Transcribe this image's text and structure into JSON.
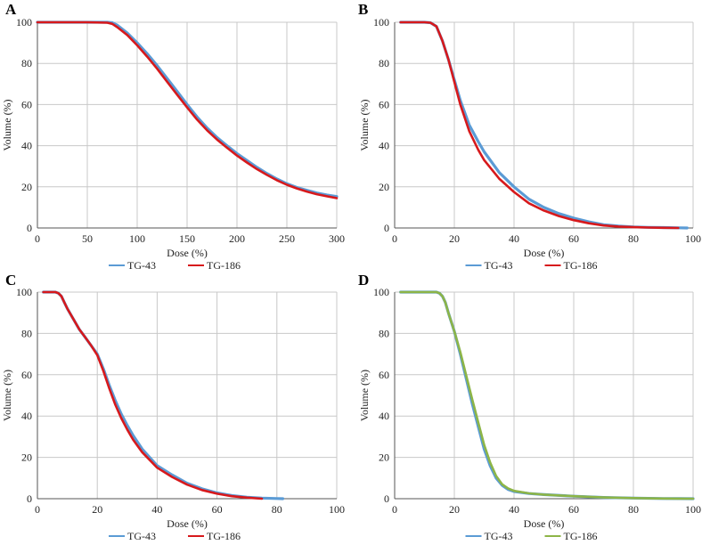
{
  "figure": {
    "panels": [
      {
        "letter": "A",
        "xlabel": "Dose (%)",
        "ylabel": "Volume (%)",
        "chart_data": {
          "type": "line",
          "xlim": [
            0,
            300
          ],
          "ylim": [
            0,
            100
          ],
          "xticks": [
            0,
            50,
            100,
            150,
            200,
            250,
            300
          ],
          "yticks": [
            0,
            20,
            40,
            60,
            80,
            100
          ],
          "series": [
            {
              "name": "TG-43",
              "color": "#5b9bd5",
              "x": [
                0,
                50,
                70,
                75,
                80,
                90,
                100,
                110,
                120,
                130,
                140,
                150,
                160,
                170,
                180,
                190,
                200,
                210,
                220,
                230,
                240,
                250,
                260,
                270,
                280,
                290,
                300
              ],
              "y": [
                100,
                100,
                100,
                99.8,
                98.6,
                94.8,
                90.0,
                84.7,
                78.9,
                72.7,
                66.4,
                60.0,
                54.0,
                48.6,
                44.0,
                40.0,
                36.2,
                32.8,
                29.5,
                26.5,
                23.8,
                21.5,
                19.7,
                18.3,
                17.0,
                16.0,
                15.3
              ]
            },
            {
              "name": "TG-186",
              "color": "#d7191c",
              "x": [
                0,
                50,
                70,
                75,
                80,
                90,
                100,
                110,
                120,
                130,
                140,
                150,
                160,
                170,
                180,
                190,
                200,
                210,
                220,
                230,
                240,
                250,
                260,
                270,
                280,
                290,
                300
              ],
              "y": [
                100,
                100,
                99.8,
                99.2,
                97.6,
                93.8,
                88.8,
                83.3,
                77.4,
                71.1,
                64.8,
                58.6,
                52.7,
                47.5,
                43.0,
                39.0,
                35.2,
                31.8,
                28.6,
                25.8,
                23.2,
                21.0,
                19.2,
                17.7,
                16.4,
                15.4,
                14.5
              ]
            }
          ]
        }
      },
      {
        "letter": "B",
        "xlabel": "Dose (%)",
        "ylabel": "Volume (%)",
        "chart_data": {
          "type": "line",
          "xlim": [
            0,
            100
          ],
          "ylim": [
            0,
            100
          ],
          "xticks": [
            0,
            20,
            40,
            60,
            80,
            100
          ],
          "yticks": [
            0,
            20,
            40,
            60,
            80,
            100
          ],
          "series": [
            {
              "name": "TG-43",
              "color": "#5b9bd5",
              "x": [
                2,
                10,
                12,
                14,
                16,
                18,
                20,
                22,
                25,
                28,
                30,
                35,
                40,
                45,
                50,
                55,
                60,
                65,
                70,
                75,
                80,
                85,
                90,
                95,
                98
              ],
              "y": [
                100,
                100,
                99.8,
                98,
                91,
                82,
                72,
                62,
                50,
                42,
                37,
                27,
                20,
                14,
                10,
                7,
                4.8,
                3,
                1.6,
                0.9,
                0.5,
                0.3,
                0.2,
                0.1,
                0
              ]
            },
            {
              "name": "TG-186",
              "color": "#d7191c",
              "x": [
                2,
                10,
                12,
                14,
                16,
                18,
                20,
                22,
                25,
                28,
                30,
                35,
                40,
                45,
                50,
                55,
                60,
                65,
                70,
                75,
                80,
                85,
                90,
                95
              ],
              "y": [
                100,
                100,
                99.8,
                98,
                91,
                82,
                71,
                60,
                47,
                38,
                33,
                24,
                17.5,
                12,
                8.5,
                5.8,
                3.8,
                2.3,
                1.2,
                0.7,
                0.4,
                0.2,
                0.1,
                0
              ]
            }
          ]
        }
      },
      {
        "letter": "C",
        "xlabel": "Dose (%)",
        "ylabel": "Volume (%)",
        "chart_data": {
          "type": "line",
          "xlim": [
            0,
            100
          ],
          "ylim": [
            0,
            100
          ],
          "xticks": [
            0,
            20,
            40,
            60,
            80,
            100
          ],
          "yticks": [
            0,
            20,
            40,
            60,
            80,
            100
          ],
          "series": [
            {
              "name": "TG-43",
              "color": "#5b9bd5",
              "x": [
                2,
                6,
                7,
                8,
                9,
                10,
                12,
                14,
                16,
                18,
                20,
                22,
                24,
                26,
                28,
                30,
                32,
                35,
                40,
                45,
                50,
                55,
                60,
                65,
                70,
                75,
                80,
                82
              ],
              "y": [
                100,
                100,
                99.5,
                98,
                95,
                92,
                87,
                82,
                78,
                74,
                70,
                63,
                55,
                47.5,
                41,
                35.5,
                30.5,
                24,
                16,
                11.5,
                7.5,
                4.8,
                2.8,
                1.5,
                0.7,
                0.3,
                0.1,
                0
              ]
            },
            {
              "name": "TG-186",
              "color": "#d7191c",
              "x": [
                2,
                6,
                7,
                8,
                9,
                10,
                12,
                14,
                16,
                18,
                20,
                22,
                24,
                26,
                28,
                30,
                32,
                35,
                40,
                45,
                50,
                55,
                60,
                65,
                70,
                75
              ],
              "y": [
                100,
                100,
                99.5,
                98,
                95,
                92,
                87,
                82,
                78,
                74,
                69.5,
                62,
                53.5,
                45.5,
                39,
                33.5,
                28.5,
                22.5,
                15,
                10.5,
                6.8,
                4.2,
                2.4,
                1.2,
                0.5,
                0
              ]
            }
          ]
        }
      },
      {
        "letter": "D",
        "xlabel": "Dose (%)",
        "ylabel": "Volume (%)",
        "chart_data": {
          "type": "line",
          "xlim": [
            0,
            100
          ],
          "ylim": [
            0,
            100
          ],
          "xticks": [
            0,
            20,
            40,
            60,
            80,
            100
          ],
          "yticks": [
            0,
            20,
            40,
            60,
            80,
            100
          ],
          "series": [
            {
              "name": "TG-43",
              "color": "#5b9bd5",
              "x": [
                2,
                14,
                15,
                16,
                17,
                18,
                20,
                22,
                24,
                26,
                28,
                30,
                32,
                34,
                36,
                38,
                40,
                45,
                50,
                60,
                70,
                80,
                90,
                100
              ],
              "y": [
                100,
                100,
                99.5,
                98,
                95,
                90,
                81,
                70,
                58,
                46,
                35,
                24,
                16,
                10,
                6.5,
                4.5,
                3.5,
                2.5,
                2,
                1.2,
                0.6,
                0.3,
                0.1,
                0
              ]
            },
            {
              "name": "TG-186",
              "color": "#8db547",
              "x": [
                2,
                14,
                15,
                16,
                17,
                18,
                20,
                22,
                24,
                26,
                28,
                30,
                32,
                34,
                36,
                38,
                40,
                45,
                50,
                60,
                70,
                80,
                90,
                100
              ],
              "y": [
                100,
                100,
                99.5,
                98,
                95,
                90,
                81,
                71,
                59.5,
                48,
                37,
                26,
                17.5,
                11,
                7,
                5,
                3.8,
                2.6,
                2,
                1.2,
                0.6,
                0.3,
                0.1,
                0
              ]
            }
          ]
        }
      }
    ]
  }
}
